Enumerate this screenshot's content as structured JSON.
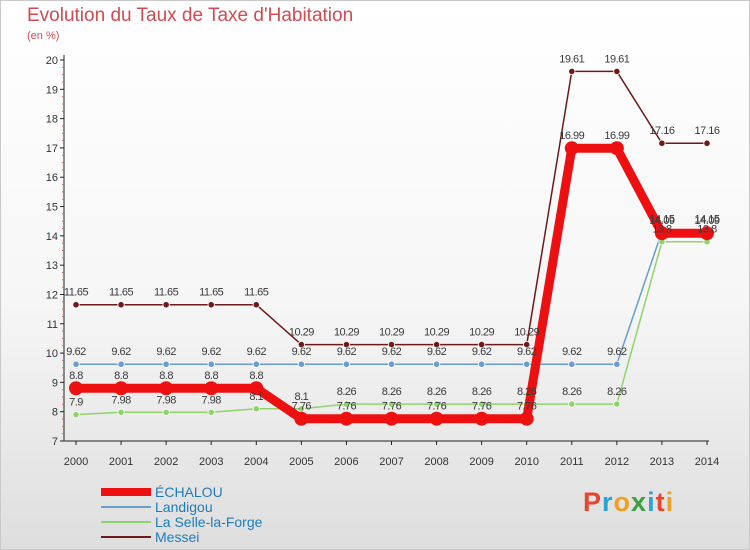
{
  "header": {
    "title": "Evolution du Taux de Taxe d'Habitation",
    "subtitle": "(en %)"
  },
  "brand": {
    "letters": [
      "P",
      "r",
      "o",
      "x",
      "i",
      "t",
      "i"
    ],
    "colors": [
      "#e8442e",
      "#2aa3d8",
      "#f0a020",
      "#3aa040",
      "#2aa3d8",
      "#e8442e",
      "#f0a020"
    ]
  },
  "chart_data": {
    "type": "line",
    "title": "Evolution du Taux de Taxe d'Habitation",
    "subtitle": "(en %)",
    "xlabel": "",
    "ylabel": "",
    "x": [
      "2000",
      "2001",
      "2002",
      "2003",
      "2004",
      "2005",
      "2006",
      "2007",
      "2008",
      "2009",
      "2010",
      "2011",
      "2012",
      "2013",
      "2014"
    ],
    "ylim": [
      7,
      20
    ],
    "yticks": [
      "7",
      "8",
      "9",
      "10",
      "11",
      "12",
      "13",
      "14",
      "15",
      "16",
      "17",
      "18",
      "19",
      "20"
    ],
    "grid": false,
    "legend": "bottom-left",
    "series": [
      {
        "name": "Messei",
        "color": "#6e1a1a",
        "values": [
          11.65,
          11.65,
          11.65,
          11.65,
          11.65,
          10.29,
          10.29,
          10.29,
          10.29,
          10.29,
          10.29,
          19.61,
          19.61,
          17.16,
          17.16
        ],
        "labels": [
          "11.65",
          "11.65",
          "11.65",
          "11.65",
          "11.65",
          "10.29",
          "10.29",
          "10.29",
          "10.29",
          "10.29",
          "10.29",
          "19.61",
          "19.61",
          "17.16",
          "17.16"
        ]
      },
      {
        "name": "Landigou",
        "color": "#6a9ccc",
        "values": [
          9.62,
          9.62,
          9.62,
          9.62,
          9.62,
          9.62,
          9.62,
          9.62,
          9.62,
          9.62,
          9.62,
          9.62,
          9.62,
          14.15,
          14.15
        ],
        "labels": [
          "9.62",
          "9.62",
          "9.62",
          "9.62",
          "9.62",
          "9.62",
          "9.62",
          "9.62",
          "9.62",
          "9.62",
          "9.62",
          "9.62",
          "9.62",
          "14.15",
          "14.15"
        ]
      },
      {
        "name": "La Selle-la-Forge",
        "color": "#8fd36a",
        "values": [
          7.9,
          7.98,
          7.98,
          7.98,
          8.1,
          8.1,
          8.26,
          8.26,
          8.26,
          8.26,
          8.26,
          8.26,
          8.26,
          13.8,
          13.8
        ],
        "labels": [
          "7.9",
          "7.98",
          "7.98",
          "7.98",
          "8.1",
          "8.1",
          "8.26",
          "8.26",
          "8.26",
          "8.26",
          "8.26",
          "8.26",
          "8.26",
          "13.8",
          "13.8"
        ]
      },
      {
        "name": "ÉCHALOU",
        "color": "#ee1010",
        "values": [
          8.8,
          8.8,
          8.8,
          8.8,
          8.8,
          7.76,
          7.76,
          7.76,
          7.76,
          7.76,
          7.76,
          16.99,
          16.99,
          14.09,
          14.09
        ],
        "labels": [
          "8.8",
          "8.8",
          "8.8",
          "8.8",
          "8.8",
          "7.76",
          "7.76",
          "7.76",
          "7.76",
          "7.76",
          "7.76",
          "16.99",
          "16.99",
          "14.09",
          "14.09"
        ]
      }
    ],
    "legend_order": [
      "ÉCHALOU",
      "Landigou",
      "La Selle-la-Forge",
      "Messei"
    ]
  }
}
